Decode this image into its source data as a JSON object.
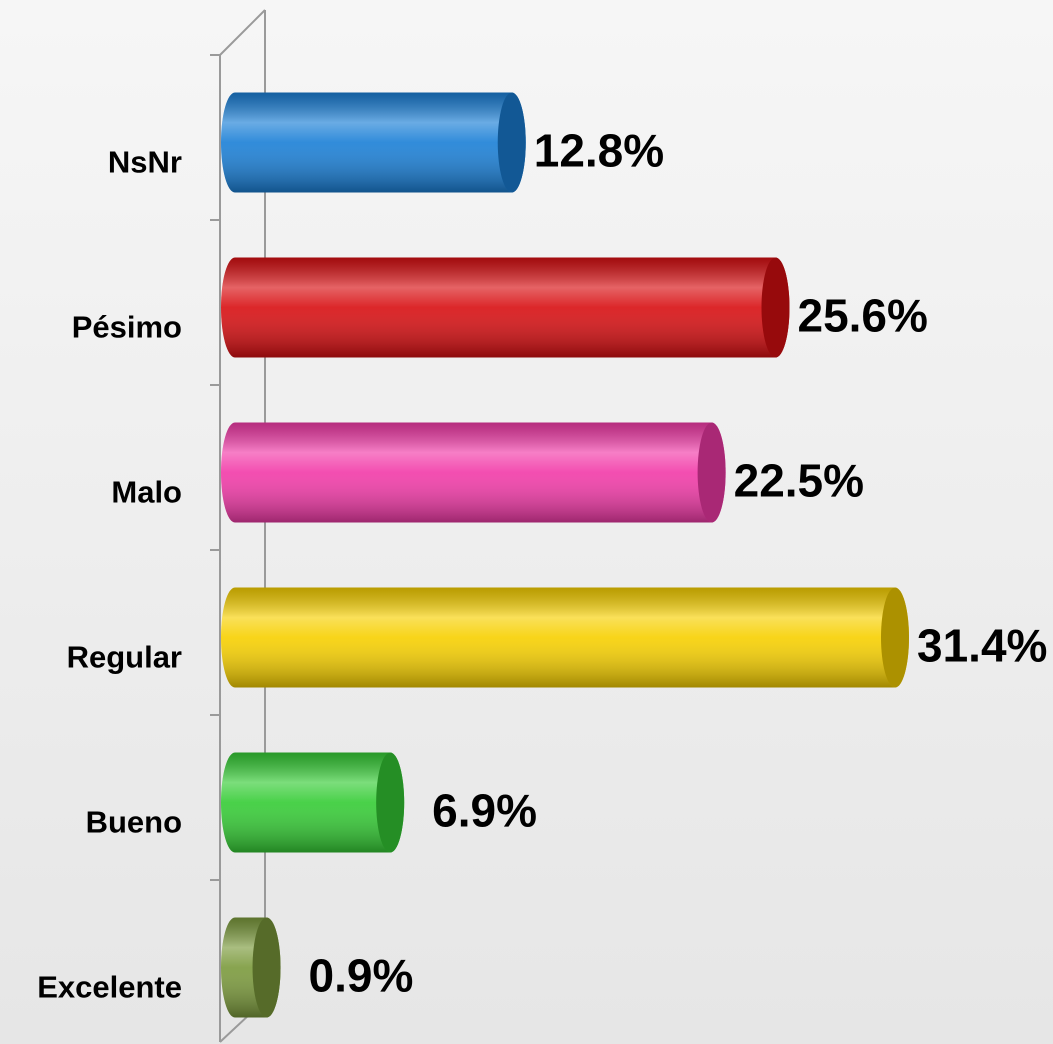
{
  "chart_data": {
    "type": "bar",
    "orientation": "horizontal",
    "categories": [
      "NsNr",
      "Pésimo",
      "Malo",
      "Regular",
      "Bueno",
      "Excelente"
    ],
    "values": [
      12.8,
      25.6,
      22.5,
      31.4,
      6.9,
      0.9
    ],
    "value_labels": [
      "12.8%",
      "25.6%",
      "22.5%",
      "31.4%",
      "6.9%",
      "0.9%"
    ],
    "colors": [
      "#1a7fd6",
      "#d80f12",
      "#f23aa8",
      "#f7d000",
      "#35cc35",
      "#7b9a3c"
    ]
  }
}
